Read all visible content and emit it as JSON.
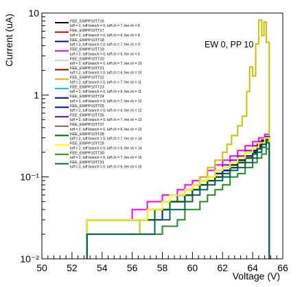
{
  "chart_data": {
    "type": "line",
    "title": "",
    "xlabel": "Voltage (V)",
    "ylabel": "Current (uA)",
    "xlim": [
      50,
      66
    ],
    "ylim": [
      0.01,
      10
    ],
    "yscale": "log",
    "x_ticks": [
      "50",
      "52",
      "54",
      "56",
      "58",
      "60",
      "62",
      "64",
      "66"
    ],
    "y_ticks": [
      "10⁻²",
      "10⁻¹",
      "1",
      "10"
    ],
    "annotation": "EW 0, PP 10",
    "grid": false,
    "legend_position": "top-left",
    "series": [
      {
        "name": "FEE_EWPP10TT16",
        "info": "tuff = 2, tuff branch = 0, tuff ch = 7, fee ch = 8",
        "color": "#000000",
        "points": [
          [
            53,
            0.03
          ],
          [
            57.5,
            0.04
          ],
          [
            58.5,
            0.05
          ],
          [
            59,
            0.06
          ],
          [
            60,
            0.07
          ],
          [
            60.5,
            0.08
          ],
          [
            61,
            0.09
          ],
          [
            61.5,
            0.1
          ],
          [
            62,
            0.12
          ],
          [
            62.5,
            0.13
          ],
          [
            63,
            0.15
          ],
          [
            63.5,
            0.17
          ],
          [
            64,
            0.2
          ],
          [
            64.3,
            0.23
          ],
          [
            64.6,
            0.27
          ],
          [
            64.9,
            0.3
          ],
          [
            65.1,
            0.0105
          ]
        ]
      },
      {
        "name": "FEE_EWPP10TT17",
        "info": "tuff = 2, tuff branch = 0, tuff ch = 6, fee ch = 8",
        "color": "#cc0000",
        "points": [
          [
            53,
            0.03
          ],
          [
            57.5,
            0.04
          ],
          [
            58.5,
            0.05
          ],
          [
            59,
            0.06
          ],
          [
            60,
            0.07
          ],
          [
            60.5,
            0.08
          ],
          [
            61,
            0.09
          ],
          [
            61.5,
            0.11
          ],
          [
            62,
            0.12
          ],
          [
            62.5,
            0.14
          ],
          [
            63,
            0.16
          ],
          [
            63.5,
            0.18
          ],
          [
            64,
            0.21
          ],
          [
            64.3,
            0.25
          ],
          [
            64.6,
            0.28
          ],
          [
            64.9,
            0.31
          ],
          [
            65.1,
            0.0105
          ]
        ]
      },
      {
        "name": "FEE_EWPP10TT18",
        "info": "tuff = 2, tuff branch = 0, tuff ch = 7, fee ch = 9",
        "color": "#0000cc",
        "points": [
          [
            53,
            0.03
          ],
          [
            58,
            0.04
          ],
          [
            58.5,
            0.05
          ],
          [
            59.5,
            0.06
          ],
          [
            60,
            0.07
          ],
          [
            60.5,
            0.08
          ],
          [
            61,
            0.09
          ],
          [
            61.5,
            0.1
          ],
          [
            62,
            0.12
          ],
          [
            62.5,
            0.13
          ],
          [
            63,
            0.15
          ],
          [
            63.5,
            0.17
          ],
          [
            64,
            0.2
          ],
          [
            64.3,
            0.23
          ],
          [
            64.6,
            0.26
          ],
          [
            64.9,
            0.29
          ],
          [
            65.1,
            0.0105
          ]
        ]
      },
      {
        "name": "FEE_EWPP10TT19",
        "info": "tuff = 2, tuff branch = 0, tuff ch = 6, fee ch = 9",
        "color": "#ff00ff",
        "points": [
          [
            53,
            0.03
          ],
          [
            56,
            0.04
          ],
          [
            57,
            0.05
          ],
          [
            58,
            0.06
          ],
          [
            59,
            0.07
          ],
          [
            59.5,
            0.08
          ],
          [
            60,
            0.09
          ],
          [
            60.5,
            0.1
          ],
          [
            61,
            0.12
          ],
          [
            61.5,
            0.14
          ],
          [
            62,
            0.16
          ],
          [
            62.5,
            0.18
          ],
          [
            63,
            0.21
          ],
          [
            63.5,
            0.24
          ],
          [
            64,
            0.27
          ],
          [
            64.4,
            0.3
          ],
          [
            64.8,
            0.33
          ],
          [
            65.1,
            0.0105
          ]
        ]
      },
      {
        "name": "FEE_EWPP10TT20",
        "info": "tuff = 2, tuff branch = 0, tuff ch = 7, fee ch = 10",
        "color": "#cccccc",
        "points": [
          [
            53,
            0.03
          ],
          [
            57.5,
            0.04
          ],
          [
            58.5,
            0.05
          ],
          [
            59.5,
            0.06
          ],
          [
            60,
            0.07
          ],
          [
            60.5,
            0.08
          ],
          [
            61,
            0.09
          ],
          [
            61.5,
            0.1
          ],
          [
            62,
            0.11
          ],
          [
            62.5,
            0.13
          ],
          [
            63,
            0.15
          ],
          [
            63.5,
            0.17
          ],
          [
            64,
            0.19
          ],
          [
            64.3,
            0.22
          ],
          [
            64.6,
            0.25
          ],
          [
            64.9,
            0.28
          ],
          [
            65.1,
            0.0105
          ]
        ]
      },
      {
        "name": "FEE_EWPP10TT21",
        "info": "tuff = 2, tuff branch = 0, tuff ch = 6, fee ch = 10",
        "color": "#8b0000",
        "points": [
          [
            53,
            0.03
          ],
          [
            58,
            0.04
          ],
          [
            58.5,
            0.05
          ],
          [
            59.5,
            0.06
          ],
          [
            60,
            0.07
          ],
          [
            60.5,
            0.08
          ],
          [
            61,
            0.09
          ],
          [
            61.5,
            0.1
          ],
          [
            62,
            0.12
          ],
          [
            62.5,
            0.13
          ],
          [
            63,
            0.15
          ],
          [
            63.5,
            0.17
          ],
          [
            64,
            0.2
          ],
          [
            64.3,
            0.23
          ],
          [
            64.6,
            0.26
          ],
          [
            64.9,
            0.29
          ],
          [
            65.1,
            0.0105
          ]
        ]
      },
      {
        "name": "FEE_EWPP10TT22",
        "info": "tuff = 2, tuff branch = 0, tuff ch = 7, fee ch = 11",
        "color": "#c8c000",
        "points": [
          [
            53,
            0.03
          ],
          [
            56.5,
            0.02
          ],
          [
            57.5,
            0.03
          ],
          [
            58,
            0.04
          ],
          [
            58.5,
            0.05
          ],
          [
            59,
            0.06
          ],
          [
            59.5,
            0.07
          ],
          [
            60,
            0.08
          ],
          [
            60.5,
            0.1
          ],
          [
            61,
            0.13
          ],
          [
            61.5,
            0.16
          ],
          [
            62,
            0.2
          ],
          [
            62.3,
            0.25
          ],
          [
            62.6,
            0.32
          ],
          [
            63,
            0.42
          ],
          [
            63.3,
            0.55
          ],
          [
            63.6,
            1.1
          ],
          [
            63.8,
            2.2
          ],
          [
            64,
            1.7
          ],
          [
            64.2,
            4.2
          ],
          [
            64.4,
            8.2
          ],
          [
            64.6,
            5.3
          ],
          [
            64.75,
            7.8
          ],
          [
            64.9,
            4.4
          ],
          [
            65.1,
            0.0105
          ]
        ]
      },
      {
        "name": "FEE_EWPP10TT23",
        "info": "tuff = 2, tuff branch = 0, tuff ch = 6, fee ch = 11",
        "color": "#00cccc",
        "points": [
          [
            53,
            0.03
          ],
          [
            57.5,
            0.04
          ],
          [
            58.5,
            0.05
          ],
          [
            59.5,
            0.06
          ],
          [
            60,
            0.07
          ],
          [
            60.5,
            0.08
          ],
          [
            61,
            0.09
          ],
          [
            61.5,
            0.1
          ],
          [
            62,
            0.12
          ],
          [
            62.5,
            0.13
          ],
          [
            63,
            0.15
          ],
          [
            63.5,
            0.17
          ],
          [
            64,
            0.19
          ],
          [
            64.3,
            0.22
          ],
          [
            64.6,
            0.25
          ],
          [
            64.9,
            0.27
          ],
          [
            65.1,
            0.0105
          ]
        ]
      },
      {
        "name": "FEE_EWPP10TT24",
        "info": "tuff = 2, tuff branch = 0, tuff ch = 7, fee ch = 12",
        "color": "#000080",
        "points": [
          [
            53,
            0.03
          ],
          [
            57.5,
            0.04
          ],
          [
            58.5,
            0.05
          ],
          [
            59,
            0.06
          ],
          [
            60,
            0.07
          ],
          [
            60.5,
            0.08
          ],
          [
            61,
            0.09
          ],
          [
            61.5,
            0.11
          ],
          [
            62,
            0.12
          ],
          [
            62.5,
            0.14
          ],
          [
            63,
            0.16
          ],
          [
            63.5,
            0.18
          ],
          [
            64,
            0.21
          ],
          [
            64.3,
            0.24
          ],
          [
            64.6,
            0.28
          ],
          [
            64.9,
            0.31
          ],
          [
            65.1,
            0.0105
          ]
        ]
      },
      {
        "name": "FEE_EWPP10TT25",
        "info": "tuff = 2, tuff branch = 0, tuff ch = 6, fee ch = 12",
        "color": "#0000ff",
        "points": [
          [
            53,
            0.03
          ],
          [
            58,
            0.04
          ],
          [
            58.5,
            0.05
          ],
          [
            59.5,
            0.06
          ],
          [
            60,
            0.07
          ],
          [
            60.5,
            0.08
          ],
          [
            61,
            0.09
          ],
          [
            61.5,
            0.1
          ],
          [
            62,
            0.12
          ],
          [
            62.5,
            0.13
          ],
          [
            63,
            0.15
          ],
          [
            63.5,
            0.17
          ],
          [
            64,
            0.2
          ],
          [
            64.3,
            0.23
          ],
          [
            64.6,
            0.26
          ],
          [
            64.9,
            0.29
          ],
          [
            65.1,
            0.0105
          ]
        ]
      },
      {
        "name": "FEE_EWPP10TT26",
        "info": "tuff = 2, tuff branch = 0, tuff ch = 7, fee ch = 13",
        "color": "#9900cc",
        "points": [
          [
            53,
            0.03
          ],
          [
            57,
            0.04
          ],
          [
            58,
            0.05
          ],
          [
            58.5,
            0.06
          ],
          [
            59.5,
            0.07
          ],
          [
            60,
            0.08
          ],
          [
            60.5,
            0.09
          ],
          [
            61,
            0.1
          ],
          [
            61.5,
            0.12
          ],
          [
            62,
            0.14
          ],
          [
            62.5,
            0.16
          ],
          [
            63,
            0.18
          ],
          [
            63.5,
            0.21
          ],
          [
            64,
            0.24
          ],
          [
            64.4,
            0.27
          ],
          [
            64.8,
            0.31
          ],
          [
            65.1,
            0.0105
          ]
        ]
      },
      {
        "name": "FEE_EWPP10TT27",
        "info": "tuff = 2, tuff branch = 0, tuff ch = 6, fee ch = 13",
        "color": "#666666",
        "points": [
          [
            53,
            0.03
          ],
          [
            57,
            0.04
          ],
          [
            58,
            0.05
          ],
          [
            59,
            0.06
          ],
          [
            59.5,
            0.07
          ],
          [
            60,
            0.08
          ],
          [
            60.5,
            0.09
          ],
          [
            61,
            0.1
          ],
          [
            61.5,
            0.12
          ],
          [
            62,
            0.13
          ],
          [
            62.5,
            0.15
          ],
          [
            63,
            0.17
          ],
          [
            63.5,
            0.2
          ],
          [
            64,
            0.23
          ],
          [
            64.4,
            0.26
          ],
          [
            64.8,
            0.29
          ],
          [
            65.1,
            0.0105
          ]
        ]
      },
      {
        "name": "FEE_EWPP10TT28",
        "info": "tuff = 2, tuff branch = 0, tuff ch = 7, fee ch = 14",
        "color": "#006400",
        "points": [
          [
            53,
            0.03
          ],
          [
            57.5,
            0.04
          ],
          [
            58.5,
            0.05
          ],
          [
            59.5,
            0.06
          ],
          [
            60,
            0.07
          ],
          [
            60.5,
            0.08
          ],
          [
            61,
            0.09
          ],
          [
            61.5,
            0.1
          ],
          [
            62,
            0.11
          ],
          [
            62.5,
            0.13
          ],
          [
            63,
            0.15
          ],
          [
            63.5,
            0.17
          ],
          [
            64,
            0.19
          ],
          [
            64.3,
            0.22
          ],
          [
            64.6,
            0.25
          ],
          [
            64.9,
            0.28
          ],
          [
            65.1,
            0.0105
          ]
        ]
      },
      {
        "name": "FEE_EWPP10TT29",
        "info": "tuff = 2, tuff branch = 0, tuff ch = 6, fee ch = 14",
        "color": "#ffff00",
        "points": [
          [
            53,
            0.03
          ],
          [
            57,
            0.04
          ],
          [
            58,
            0.05
          ],
          [
            58.5,
            0.06
          ],
          [
            59.5,
            0.07
          ],
          [
            60,
            0.08
          ],
          [
            60.5,
            0.09
          ],
          [
            61,
            0.1
          ],
          [
            61.5,
            0.12
          ],
          [
            62,
            0.13
          ],
          [
            62.5,
            0.15
          ],
          [
            63,
            0.17
          ],
          [
            63.5,
            0.2
          ],
          [
            64,
            0.23
          ],
          [
            64.4,
            0.26
          ],
          [
            64.8,
            0.3
          ],
          [
            65.1,
            0.0105
          ]
        ]
      },
      {
        "name": "FEE_EWPP10TT30",
        "info": "tuff = 2, tuff branch = 0, tuff ch = 7, fee ch = 15",
        "color": "#228b22",
        "points": [
          [
            53,
            0.02
          ],
          [
            58,
            0.025
          ],
          [
            59,
            0.03
          ],
          [
            59.5,
            0.04
          ],
          [
            60.5,
            0.05
          ],
          [
            61,
            0.06
          ],
          [
            61.5,
            0.07
          ],
          [
            62,
            0.08
          ],
          [
            62.5,
            0.1
          ],
          [
            63,
            0.11
          ],
          [
            63.5,
            0.13
          ],
          [
            64,
            0.15
          ],
          [
            64.3,
            0.17
          ],
          [
            64.6,
            0.19
          ],
          [
            64.9,
            0.22
          ],
          [
            65.1,
            0.0105
          ]
        ]
      },
      {
        "name": "FEE_EWPP10TT31",
        "info": "tuff = 2, tuff branch = 0, tuff ch = 6, fee ch = 15",
        "color": "#006060",
        "points": [
          [
            53,
            0.02
          ],
          [
            57.5,
            0.03
          ],
          [
            58.5,
            0.04
          ],
          [
            59.5,
            0.05
          ],
          [
            60,
            0.06
          ],
          [
            60.5,
            0.07
          ],
          [
            61,
            0.08
          ],
          [
            61.5,
            0.09
          ],
          [
            62,
            0.1
          ],
          [
            62.5,
            0.12
          ],
          [
            63,
            0.13
          ],
          [
            63.5,
            0.15
          ],
          [
            64,
            0.17
          ],
          [
            64.3,
            0.2
          ],
          [
            64.6,
            0.23
          ],
          [
            64.9,
            0.26
          ],
          [
            65.1,
            0.0105
          ]
        ]
      }
    ]
  }
}
